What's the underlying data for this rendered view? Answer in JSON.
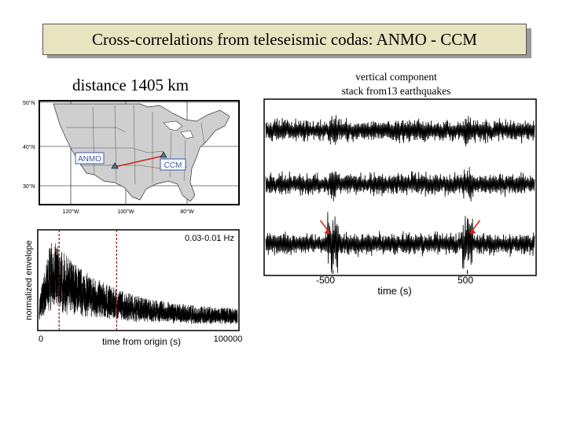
{
  "slide": {
    "title": "Cross-correlations from teleseismic codas: ANMO - CCM",
    "distance": "distance 1405 km",
    "component_line1": "vertical component",
    "component_line2": "stack from13 earthquakes"
  },
  "map": {
    "lat_labels": [
      "50°N",
      "40°N",
      "30°N"
    ],
    "lon_labels": [
      "120°W",
      "100°W",
      "80°W"
    ],
    "station_a": "ANMO",
    "station_b": "CCM",
    "colors": {
      "land": "#cfcfcf",
      "station_box": "#3a5aa8",
      "path": "#d0241b",
      "marker": "#4a7a86"
    }
  },
  "chart_data": [
    {
      "type": "line",
      "title": "",
      "annotation": "0.03-0.01 Hz",
      "xlabel": "time from origin (s)",
      "ylabel": "normalized envelope",
      "xlim": [
        0,
        100000
      ],
      "x_ticks": [
        "0",
        "100000"
      ],
      "markers_x": [
        10000,
        39000
      ],
      "envelope": {
        "peak_x": 6000,
        "peak": 1.0,
        "floor": 0.2
      }
    },
    {
      "type": "line",
      "title": "",
      "xlabel": "time (s)",
      "x_ticks": [
        "-500",
        "500"
      ],
      "xlim": [
        -1000,
        1000
      ],
      "traces": 3,
      "arrows_x": [
        -500,
        500
      ],
      "colors": {
        "arrow": "#d0241b"
      }
    }
  ]
}
